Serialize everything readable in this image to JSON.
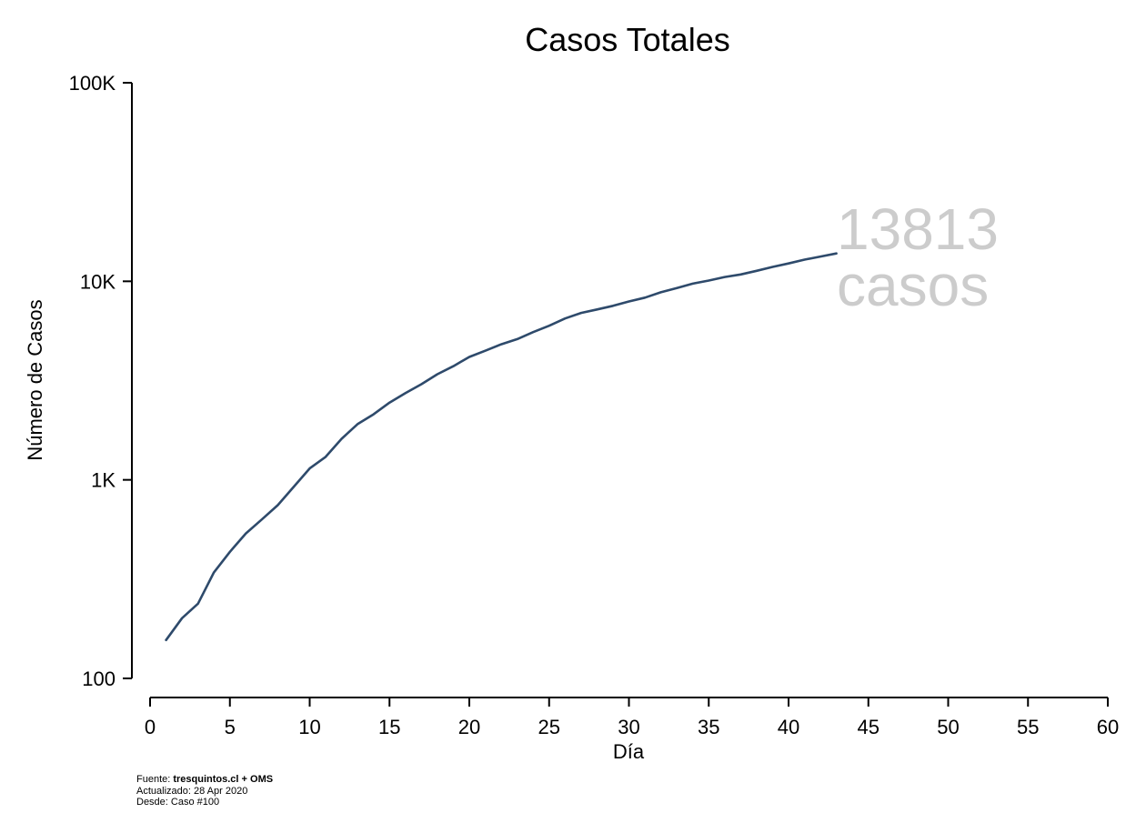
{
  "chart_data": {
    "type": "line",
    "title": "Casos Totales",
    "xlabel": "Día",
    "ylabel": "Número de Casos",
    "y_scale": "log",
    "xlim": [
      0,
      60
    ],
    "ylim": [
      100,
      100000
    ],
    "x_ticks": [
      0,
      5,
      10,
      15,
      20,
      25,
      30,
      35,
      40,
      45,
      50,
      55,
      60
    ],
    "y_ticks": [
      {
        "value": 100,
        "label": "100"
      },
      {
        "value": 1000,
        "label": "1K"
      },
      {
        "value": 10000,
        "label": "10K"
      },
      {
        "value": 100000,
        "label": "100K"
      }
    ],
    "grid": false,
    "series": [
      {
        "color": "#2e4a6b",
        "x": [
          1,
          2,
          3,
          4,
          5,
          6,
          7,
          8,
          9,
          10,
          11,
          12,
          13,
          14,
          15,
          16,
          17,
          18,
          19,
          20,
          21,
          22,
          23,
          24,
          25,
          26,
          27,
          28,
          29,
          30,
          31,
          32,
          33,
          34,
          35,
          36,
          37,
          38,
          39,
          40,
          41,
          42,
          43
        ],
        "y": [
          156,
          201,
          238,
          342,
          434,
          537,
          632,
          746,
          922,
          1142,
          1306,
          1610,
          1909,
          2139,
          2449,
          2738,
          3031,
          3404,
          3737,
          4161,
          4471,
          4815,
          5116,
          5546,
          5972,
          6501,
          6927,
          7213,
          7525,
          7917,
          8273,
          8807,
          9252,
          9730,
          10088,
          10507,
          10832,
          11296,
          11812,
          12306,
          12858,
          13331,
          13813
        ]
      }
    ],
    "annotation": {
      "value": "13813",
      "unit": "casos"
    }
  },
  "footer": {
    "source_prefix": "Fuente: ",
    "source_bold": "tresquintos.cl + OMS",
    "updated": "Actualizado: 28 Apr 2020",
    "since": "Desde: Caso #100"
  }
}
